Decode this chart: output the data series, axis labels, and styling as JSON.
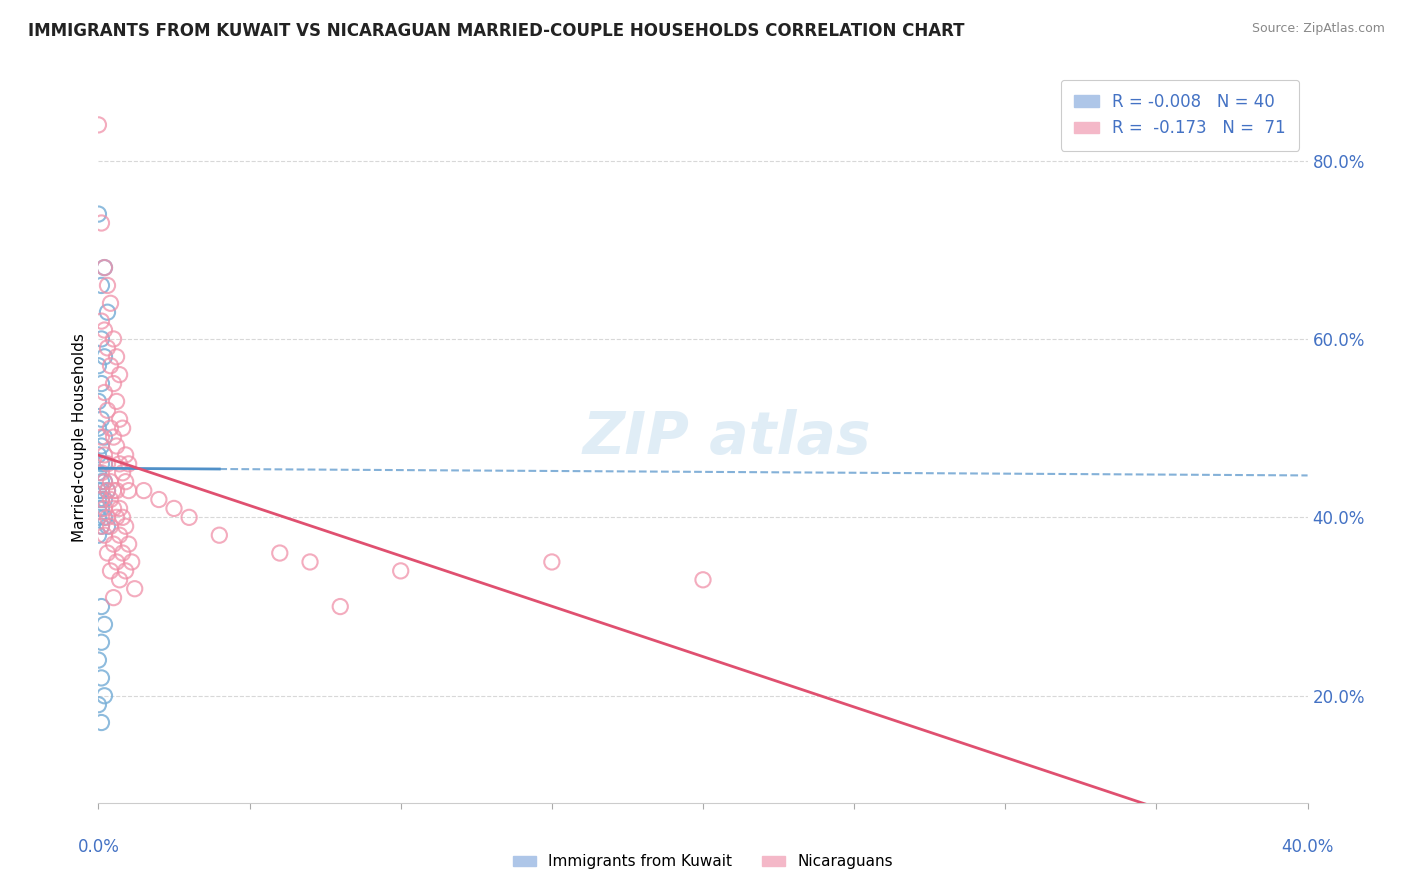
{
  "title": "IMMIGRANTS FROM KUWAIT VS NICARAGUAN MARRIED-COUPLE HOUSEHOLDS CORRELATION CHART",
  "source": "Source: ZipAtlas.com",
  "ylabel": "Married-couple Households",
  "right_yticks": [
    0.2,
    0.4,
    0.6,
    0.8
  ],
  "right_yticklabels": [
    "20.0%",
    "40.0%",
    "60.0%",
    "80.0%"
  ],
  "xlim": [
    0.0,
    0.4
  ],
  "ylim": [
    0.08,
    0.9
  ],
  "kuwait_color": "#7ab0d8",
  "nicaragua_color": "#f090a8",
  "kuwait_line_color": "#5090c8",
  "nicaragua_line_color": "#e05070",
  "background_color": "#ffffff",
  "kuwait_R": -0.008,
  "kuwait_N": 40,
  "nicaragua_R": -0.173,
  "nicaragua_N": 71,
  "kuwait_points": [
    [
      0.0,
      0.74
    ],
    [
      0.002,
      0.68
    ],
    [
      0.001,
      0.66
    ],
    [
      0.003,
      0.63
    ],
    [
      0.001,
      0.6
    ],
    [
      0.002,
      0.58
    ],
    [
      0.0,
      0.57
    ],
    [
      0.001,
      0.55
    ],
    [
      0.0,
      0.53
    ],
    [
      0.001,
      0.51
    ],
    [
      0.0,
      0.5
    ],
    [
      0.002,
      0.49
    ],
    [
      0.001,
      0.48
    ],
    [
      0.0,
      0.47
    ],
    [
      0.001,
      0.46
    ],
    [
      0.002,
      0.46
    ],
    [
      0.0,
      0.45
    ],
    [
      0.001,
      0.44
    ],
    [
      0.002,
      0.44
    ],
    [
      0.0,
      0.43
    ],
    [
      0.001,
      0.43
    ],
    [
      0.003,
      0.43
    ],
    [
      0.0,
      0.42
    ],
    [
      0.001,
      0.42
    ],
    [
      0.002,
      0.42
    ],
    [
      0.0,
      0.41
    ],
    [
      0.001,
      0.41
    ],
    [
      0.0,
      0.4
    ],
    [
      0.002,
      0.4
    ],
    [
      0.001,
      0.39
    ],
    [
      0.003,
      0.39
    ],
    [
      0.0,
      0.38
    ],
    [
      0.001,
      0.3
    ],
    [
      0.002,
      0.28
    ],
    [
      0.001,
      0.26
    ],
    [
      0.0,
      0.24
    ],
    [
      0.001,
      0.22
    ],
    [
      0.002,
      0.2
    ],
    [
      0.0,
      0.19
    ],
    [
      0.001,
      0.17
    ]
  ],
  "nicaragua_points": [
    [
      0.0,
      0.84
    ],
    [
      0.001,
      0.73
    ],
    [
      0.002,
      0.68
    ],
    [
      0.003,
      0.66
    ],
    [
      0.004,
      0.64
    ],
    [
      0.001,
      0.62
    ],
    [
      0.002,
      0.61
    ],
    [
      0.005,
      0.6
    ],
    [
      0.003,
      0.59
    ],
    [
      0.006,
      0.58
    ],
    [
      0.004,
      0.57
    ],
    [
      0.007,
      0.56
    ],
    [
      0.005,
      0.55
    ],
    [
      0.002,
      0.54
    ],
    [
      0.006,
      0.53
    ],
    [
      0.003,
      0.52
    ],
    [
      0.007,
      0.51
    ],
    [
      0.004,
      0.5
    ],
    [
      0.008,
      0.5
    ],
    [
      0.005,
      0.49
    ],
    [
      0.001,
      0.49
    ],
    [
      0.006,
      0.48
    ],
    [
      0.009,
      0.47
    ],
    [
      0.002,
      0.47
    ],
    [
      0.007,
      0.46
    ],
    [
      0.01,
      0.46
    ],
    [
      0.003,
      0.46
    ],
    [
      0.008,
      0.45
    ],
    [
      0.001,
      0.45
    ],
    [
      0.004,
      0.44
    ],
    [
      0.009,
      0.44
    ],
    [
      0.002,
      0.44
    ],
    [
      0.005,
      0.43
    ],
    [
      0.01,
      0.43
    ],
    [
      0.003,
      0.43
    ],
    [
      0.006,
      0.43
    ],
    [
      0.001,
      0.42
    ],
    [
      0.004,
      0.42
    ],
    [
      0.007,
      0.41
    ],
    [
      0.002,
      0.41
    ],
    [
      0.005,
      0.41
    ],
    [
      0.008,
      0.4
    ],
    [
      0.003,
      0.4
    ],
    [
      0.006,
      0.4
    ],
    [
      0.001,
      0.39
    ],
    [
      0.004,
      0.39
    ],
    [
      0.009,
      0.39
    ],
    [
      0.002,
      0.38
    ],
    [
      0.007,
      0.38
    ],
    [
      0.005,
      0.37
    ],
    [
      0.01,
      0.37
    ],
    [
      0.003,
      0.36
    ],
    [
      0.008,
      0.36
    ],
    [
      0.006,
      0.35
    ],
    [
      0.011,
      0.35
    ],
    [
      0.004,
      0.34
    ],
    [
      0.009,
      0.34
    ],
    [
      0.007,
      0.33
    ],
    [
      0.012,
      0.32
    ],
    [
      0.005,
      0.31
    ],
    [
      0.2,
      0.33
    ],
    [
      0.15,
      0.35
    ],
    [
      0.1,
      0.34
    ],
    [
      0.08,
      0.3
    ],
    [
      0.02,
      0.42
    ],
    [
      0.015,
      0.43
    ],
    [
      0.025,
      0.41
    ],
    [
      0.03,
      0.4
    ],
    [
      0.04,
      0.38
    ],
    [
      0.06,
      0.36
    ],
    [
      0.07,
      0.35
    ]
  ],
  "grid_color": "#d8d8d8",
  "grid_style": "--"
}
